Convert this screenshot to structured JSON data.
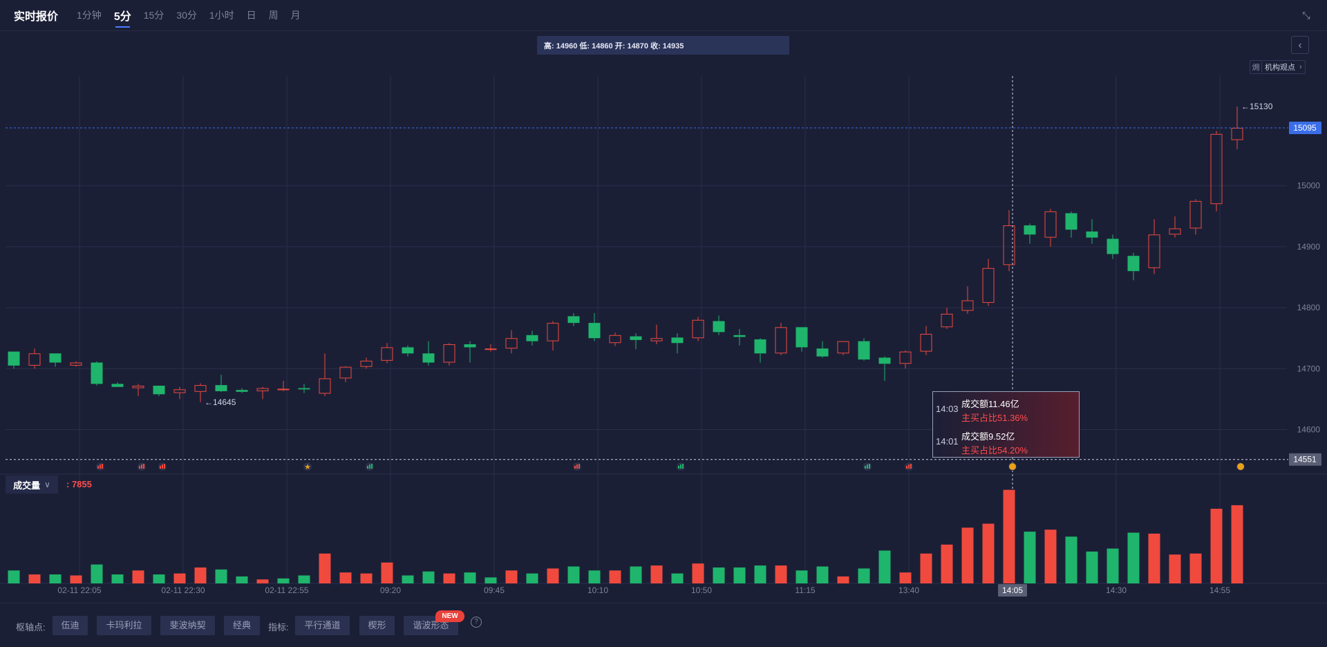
{
  "header": {
    "title": "实时报价",
    "tabs": [
      {
        "label": "1分钟",
        "active": false
      },
      {
        "label": "5分",
        "active": true
      },
      {
        "label": "15分",
        "active": false
      },
      {
        "label": "30分",
        "active": false
      },
      {
        "label": "1小时",
        "active": false
      },
      {
        "label": "日",
        "active": false
      },
      {
        "label": "周",
        "active": false
      },
      {
        "label": "月",
        "active": false
      }
    ]
  },
  "ohlc_box": "高: 14960 低: 14860 开: 14870 收: 14935",
  "institution_view": {
    "icon_text": "㶲",
    "label": "机构观点"
  },
  "tooltip": [
    {
      "time": "14:03",
      "amount": "成交额11.46亿",
      "ratio": "主买占比51.36%"
    },
    {
      "time": "14:01",
      "amount": "成交额9.52亿",
      "ratio": "主买占比54.20%"
    }
  ],
  "volume_panel": {
    "selector": "成交量",
    "value": ": 7855"
  },
  "bottom_bar": {
    "pivot_label": "枢轴点:",
    "pivot_buttons": [
      "伍迪",
      "卡玛利拉",
      "斐波纳契",
      "经典"
    ],
    "indicator_label": "指标:",
    "indicator_buttons": [
      "平行通道",
      "楔形",
      "谐波形态"
    ],
    "new_badge": "NEW",
    "help": "?"
  },
  "colors": {
    "up": "#f04a3e",
    "down": "#1fb56c",
    "background": "#1b1f36",
    "accent": "#4a7bff"
  },
  "chart_data": {
    "type": "candlestick",
    "price_axis": {
      "ticks": [
        14600,
        14700,
        14800,
        14900,
        15000
      ],
      "ylim": [
        14545,
        15180
      ],
      "side": "right"
    },
    "time_axis_labels": [
      {
        "index": 3,
        "label": "02-11 22:05"
      },
      {
        "index": 8,
        "label": "02-11 22:30"
      },
      {
        "index": 13,
        "label": "02-11 22:55"
      },
      {
        "index": 18,
        "label": "09:20"
      },
      {
        "index": 23,
        "label": "09:45"
      },
      {
        "index": 28,
        "label": "10:10"
      },
      {
        "index": 33,
        "label": "10:50"
      },
      {
        "index": 38,
        "label": "11:15"
      },
      {
        "index": 43,
        "label": "13:40"
      },
      {
        "index": 53,
        "label": "14:30"
      },
      {
        "index": 58,
        "label": "14:55"
      }
    ],
    "current_price": {
      "value": 15095,
      "label": "15095"
    },
    "crosshair": {
      "index": 48,
      "price": 14551,
      "price_label": "14551",
      "time_label": "14:05"
    },
    "annotations": [
      {
        "index": 9,
        "price": 14645,
        "label": "14645"
      },
      {
        "index": 59,
        "price": 15130,
        "label": "15130"
      }
    ],
    "event_markers": [
      {
        "index": 4,
        "kind": "bar",
        "color": "#f04a3e"
      },
      {
        "index": 6,
        "kind": "bar",
        "color": "#f04a3e"
      },
      {
        "index": 7,
        "kind": "bar",
        "color": "#f04a3e"
      },
      {
        "index": 14,
        "kind": "star",
        "color": "#e8a21a"
      },
      {
        "index": 17,
        "kind": "bar",
        "color": "#1fb56c"
      },
      {
        "index": 27,
        "kind": "bar",
        "color": "#f04a3e"
      },
      {
        "index": 32,
        "kind": "bar",
        "color": "#1fb56c"
      },
      {
        "index": 41,
        "kind": "bar",
        "color": "#1fb56c"
      },
      {
        "index": 43,
        "kind": "bar",
        "color": "#f04a3e"
      },
      {
        "index": 48,
        "kind": "coin",
        "color": "#e8a21a"
      },
      {
        "index": 59,
        "kind": "coin",
        "color": "#e8a21a"
      }
    ],
    "candles": [
      {
        "o": 14728,
        "h": 14728,
        "l": 14700,
        "c": 14705
      },
      {
        "o": 14705,
        "h": 14733,
        "l": 14700,
        "c": 14725
      },
      {
        "o": 14725,
        "h": 14725,
        "l": 14703,
        "c": 14710
      },
      {
        "o": 14705,
        "h": 14712,
        "l": 14703,
        "c": 14710
      },
      {
        "o": 14710,
        "h": 14712,
        "l": 14672,
        "c": 14675
      },
      {
        "o": 14675,
        "h": 14678,
        "l": 14670,
        "c": 14670
      },
      {
        "o": 14668,
        "h": 14675,
        "l": 14655,
        "c": 14672
      },
      {
        "o": 14672,
        "h": 14672,
        "l": 14655,
        "c": 14658
      },
      {
        "o": 14660,
        "h": 14670,
        "l": 14650,
        "c": 14666
      },
      {
        "o": 14662,
        "h": 14676,
        "l": 14645,
        "c": 14673
      },
      {
        "o": 14673,
        "h": 14690,
        "l": 14662,
        "c": 14663
      },
      {
        "o": 14665,
        "h": 14668,
        "l": 14660,
        "c": 14662
      },
      {
        "o": 14663,
        "h": 14670,
        "l": 14650,
        "c": 14668
      },
      {
        "o": 14667,
        "h": 14680,
        "l": 14663,
        "c": 14667
      },
      {
        "o": 14668,
        "h": 14675,
        "l": 14660,
        "c": 14666
      },
      {
        "o": 14659,
        "h": 14725,
        "l": 14655,
        "c": 14684
      },
      {
        "o": 14684,
        "h": 14704,
        "l": 14678,
        "c": 14703
      },
      {
        "o": 14703,
        "h": 14718,
        "l": 14700,
        "c": 14713
      },
      {
        "o": 14713,
        "h": 14742,
        "l": 14709,
        "c": 14735
      },
      {
        "o": 14735,
        "h": 14738,
        "l": 14720,
        "c": 14725
      },
      {
        "o": 14725,
        "h": 14745,
        "l": 14705,
        "c": 14710
      },
      {
        "o": 14710,
        "h": 14742,
        "l": 14705,
        "c": 14740
      },
      {
        "o": 14740,
        "h": 14745,
        "l": 14710,
        "c": 14735
      },
      {
        "o": 14733,
        "h": 14740,
        "l": 14728,
        "c": 14733
      },
      {
        "o": 14733,
        "h": 14763,
        "l": 14725,
        "c": 14750
      },
      {
        "o": 14755,
        "h": 14762,
        "l": 14738,
        "c": 14745
      },
      {
        "o": 14745,
        "h": 14778,
        "l": 14730,
        "c": 14775
      },
      {
        "o": 14786,
        "h": 14791,
        "l": 14770,
        "c": 14775
      },
      {
        "o": 14775,
        "h": 14791,
        "l": 14745,
        "c": 14750
      },
      {
        "o": 14742,
        "h": 14759,
        "l": 14737,
        "c": 14755
      },
      {
        "o": 14753,
        "h": 14758,
        "l": 14732,
        "c": 14747
      },
      {
        "o": 14745,
        "h": 14772,
        "l": 14740,
        "c": 14750
      },
      {
        "o": 14751,
        "h": 14758,
        "l": 14725,
        "c": 14742
      },
      {
        "o": 14750,
        "h": 14785,
        "l": 14745,
        "c": 14780
      },
      {
        "o": 14778,
        "h": 14787,
        "l": 14755,
        "c": 14760
      },
      {
        "o": 14755,
        "h": 14765,
        "l": 14738,
        "c": 14752
      },
      {
        "o": 14748,
        "h": 14750,
        "l": 14710,
        "c": 14725
      },
      {
        "o": 14725,
        "h": 14775,
        "l": 14722,
        "c": 14768
      },
      {
        "o": 14768,
        "h": 14768,
        "l": 14728,
        "c": 14735
      },
      {
        "o": 14733,
        "h": 14745,
        "l": 14718,
        "c": 14720
      },
      {
        "o": 14725,
        "h": 14745,
        "l": 14722,
        "c": 14745
      },
      {
        "o": 14745,
        "h": 14750,
        "l": 14713,
        "c": 14715
      },
      {
        "o": 14718,
        "h": 14720,
        "l": 14680,
        "c": 14708
      },
      {
        "o": 14708,
        "h": 14730,
        "l": 14700,
        "c": 14728
      },
      {
        "o": 14728,
        "h": 14770,
        "l": 14722,
        "c": 14757
      },
      {
        "o": 14768,
        "h": 14800,
        "l": 14765,
        "c": 14790
      },
      {
        "o": 14795,
        "h": 14835,
        "l": 14790,
        "c": 14812
      },
      {
        "o": 14808,
        "h": 14880,
        "l": 14803,
        "c": 14865
      },
      {
        "o": 14870,
        "h": 14960,
        "l": 14860,
        "c": 14935
      },
      {
        "o": 14935,
        "h": 14938,
        "l": 14905,
        "c": 14920
      },
      {
        "o": 14915,
        "h": 14962,
        "l": 14900,
        "c": 14958
      },
      {
        "o": 14955,
        "h": 14958,
        "l": 14915,
        "c": 14928
      },
      {
        "o": 14925,
        "h": 14945,
        "l": 14905,
        "c": 14915
      },
      {
        "o": 14913,
        "h": 14920,
        "l": 14880,
        "c": 14888
      },
      {
        "o": 14885,
        "h": 14890,
        "l": 14845,
        "c": 14860
      },
      {
        "o": 14865,
        "h": 14945,
        "l": 14855,
        "c": 14920
      },
      {
        "o": 14920,
        "h": 14950,
        "l": 14915,
        "c": 14930
      },
      {
        "o": 14930,
        "h": 14978,
        "l": 14920,
        "c": 14975
      },
      {
        "o": 14970,
        "h": 15090,
        "l": 14958,
        "c": 15085
      },
      {
        "o": 15075,
        "h": 15130,
        "l": 15060,
        "c": 15095
      }
    ],
    "volume": [
      {
        "v": 1300,
        "dir": "down"
      },
      {
        "v": 900,
        "dir": "up"
      },
      {
        "v": 900,
        "dir": "down"
      },
      {
        "v": 800,
        "dir": "up"
      },
      {
        "v": 1900,
        "dir": "down"
      },
      {
        "v": 900,
        "dir": "down"
      },
      {
        "v": 1300,
        "dir": "up"
      },
      {
        "v": 900,
        "dir": "down"
      },
      {
        "v": 1000,
        "dir": "up"
      },
      {
        "v": 1600,
        "dir": "up"
      },
      {
        "v": 1400,
        "dir": "down"
      },
      {
        "v": 700,
        "dir": "down"
      },
      {
        "v": 400,
        "dir": "up"
      },
      {
        "v": 500,
        "dir": "down"
      },
      {
        "v": 800,
        "dir": "down"
      },
      {
        "v": 3000,
        "dir": "up"
      },
      {
        "v": 1100,
        "dir": "up"
      },
      {
        "v": 1000,
        "dir": "up"
      },
      {
        "v": 2100,
        "dir": "up"
      },
      {
        "v": 800,
        "dir": "down"
      },
      {
        "v": 1200,
        "dir": "down"
      },
      {
        "v": 1000,
        "dir": "up"
      },
      {
        "v": 1100,
        "dir": "down"
      },
      {
        "v": 600,
        "dir": "down"
      },
      {
        "v": 1300,
        "dir": "up"
      },
      {
        "v": 1000,
        "dir": "down"
      },
      {
        "v": 1500,
        "dir": "up"
      },
      {
        "v": 1700,
        "dir": "down"
      },
      {
        "v": 1300,
        "dir": "down"
      },
      {
        "v": 1300,
        "dir": "up"
      },
      {
        "v": 1700,
        "dir": "down"
      },
      {
        "v": 1800,
        "dir": "up"
      },
      {
        "v": 1000,
        "dir": "down"
      },
      {
        "v": 2000,
        "dir": "up"
      },
      {
        "v": 1600,
        "dir": "down"
      },
      {
        "v": 1600,
        "dir": "down"
      },
      {
        "v": 1800,
        "dir": "down"
      },
      {
        "v": 1800,
        "dir": "up"
      },
      {
        "v": 1300,
        "dir": "down"
      },
      {
        "v": 1700,
        "dir": "down"
      },
      {
        "v": 700,
        "dir": "up"
      },
      {
        "v": 1500,
        "dir": "down"
      },
      {
        "v": 3300,
        "dir": "down"
      },
      {
        "v": 1100,
        "dir": "up"
      },
      {
        "v": 3000,
        "dir": "up"
      },
      {
        "v": 3900,
        "dir": "up"
      },
      {
        "v": 5600,
        "dir": "up"
      },
      {
        "v": 6000,
        "dir": "up"
      },
      {
        "v": 9400,
        "dir": "up"
      },
      {
        "v": 5200,
        "dir": "down"
      },
      {
        "v": 5400,
        "dir": "up"
      },
      {
        "v": 4700,
        "dir": "down"
      },
      {
        "v": 3200,
        "dir": "down"
      },
      {
        "v": 3500,
        "dir": "down"
      },
      {
        "v": 5100,
        "dir": "down"
      },
      {
        "v": 5000,
        "dir": "up"
      },
      {
        "v": 2900,
        "dir": "up"
      },
      {
        "v": 3000,
        "dir": "up"
      },
      {
        "v": 7500,
        "dir": "up"
      },
      {
        "v": 7855,
        "dir": "up"
      }
    ],
    "volume_ylim": [
      0,
      10000
    ]
  }
}
